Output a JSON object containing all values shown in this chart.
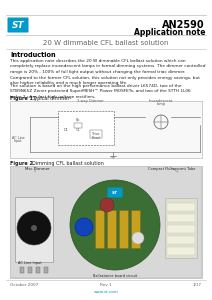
{
  "title": "AN2590",
  "subtitle": "Application note",
  "doc_title": "20 W dimmable CFL ballast solution",
  "section_intro": "Introduction",
  "intro_text1": "This application note describes the 20 W dimmable CFL ballast solution which can\ncompletely replace incandescent lamps in formal dimming systems. The dimmer controlled\nrange is 20% - 100% of full light output without changing the formal triac dimmer.",
  "intro_text2": "Compared to the former CFL solution, this solution not only provides energy savings, but\nalso higher reliability and a much longer operating life.",
  "intro_text3": "The solution is based on the high performance ballast driver L6574D, two of the\nSTB9N65Z Zener protected SuperMESH™ Power MOSFETs, and two of the STTH 1L06\nturbo 2 ultra fast high voltage rectifiers.",
  "fig1_label": "Figure 1.",
  "fig1_title": "Typical dimmer",
  "fig2_label": "Figure 2.",
  "fig2_title": "Dimming CFL ballast solution",
  "footer_date": "October 2007",
  "footer_rev": "Rev 1",
  "footer_page": "1/17",
  "footer_url": "www.st.com",
  "bg_color": "#ffffff",
  "header_line_color": "#bbbbbb",
  "title_color": "#000000",
  "doc_title_color": "#666666",
  "accent_color": "#0099cc",
  "body_text_color": "#222222",
  "fig_border_color": "#bbbbbb",
  "circuit_color": "#555555"
}
